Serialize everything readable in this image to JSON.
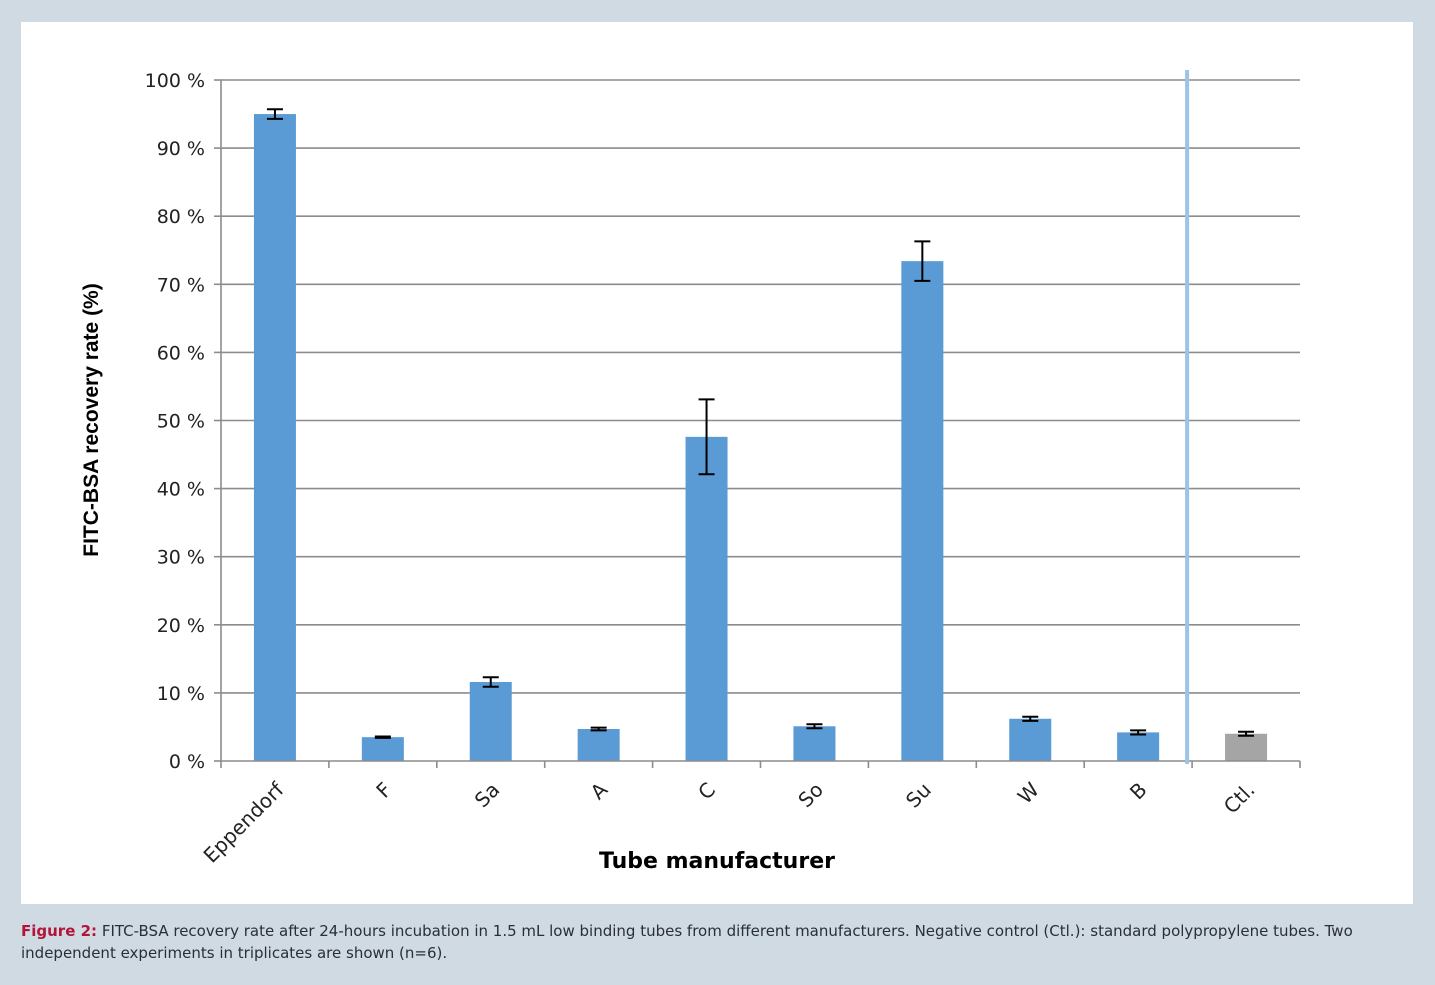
{
  "figure": {
    "caption_label": "Figure 2:",
    "caption_text": " FITC-BSA recovery rate after 24-hours incubation in 1.5 mL low binding tubes from different manufacturers. Negative control (Ctl.): standard polypropylene tubes. Two independent experiments in triplicates are shown (n=6)."
  },
  "colors": {
    "frame_background": "#cfdae2",
    "bar_primary": "#5b9bd5",
    "bar_control": "#a5a5a5",
    "separator_line": "#9dc3e6",
    "gridline": "#8c8c8c",
    "caption_label": "#b3143a"
  },
  "chart_data": {
    "type": "bar",
    "title": "",
    "xlabel": "Tube manufacturer",
    "ylabel": "FITC-BSA recovery rate (%)",
    "ylim": [
      0,
      100
    ],
    "y_ticks": [
      0,
      10,
      20,
      30,
      40,
      50,
      60,
      70,
      80,
      90,
      100
    ],
    "y_tick_labels": [
      "0 %",
      "10 %",
      "20 %",
      "30 %",
      "40 %",
      "50 %",
      "60 %",
      "70 %",
      "80 %",
      "90 %",
      "100 %"
    ],
    "grid": true,
    "legend": "none",
    "categories": [
      "Eppendorf",
      "F",
      "Sa",
      "A",
      "C",
      "So",
      "Su",
      "W",
      "B",
      "Ctl."
    ],
    "values": [
      95,
      3.5,
      11.6,
      4.7,
      47.6,
      5.1,
      73.4,
      6.2,
      4.2,
      4.0
    ],
    "errors": [
      0.7,
      0.1,
      0.7,
      0.2,
      5.5,
      0.3,
      2.9,
      0.3,
      0.3,
      0.3
    ],
    "control_category": "Ctl.",
    "separator_before": "Ctl."
  }
}
